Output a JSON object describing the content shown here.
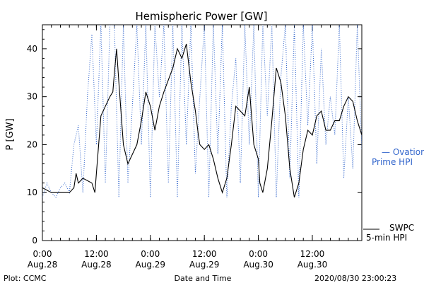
{
  "chart_data": {
    "type": "line",
    "title": "Hemispheric Power [GW]",
    "xlabel": "Date and Time",
    "ylabel": "P [GW]",
    "ylim": [
      0,
      45
    ],
    "yticks": [
      0,
      10,
      20,
      30,
      40
    ],
    "xlim": [
      "2020-08-28 00:00",
      "2020-08-30 23:00"
    ],
    "xticks": [
      {
        "t": "2020-08-28 00:00",
        "time": "0:00",
        "date": "Aug.28"
      },
      {
        "t": "2020-08-28 12:00",
        "time": "12:00",
        "date": "Aug.28"
      },
      {
        "t": "2020-08-29 00:00",
        "time": "0:00",
        "date": "Aug.29"
      },
      {
        "t": "2020-08-29 12:00",
        "time": "12:00",
        "date": "Aug.29"
      },
      {
        "t": "2020-08-30 00:00",
        "time": "0:00",
        "date": "Aug.30"
      },
      {
        "t": "2020-08-30 12:00",
        "time": "12:00",
        "date": "Aug.30"
      }
    ],
    "grid": false,
    "series": [
      {
        "name": "SWPC 5-min HPI",
        "label_lines": [
          "SWPC",
          "5-min HPI"
        ],
        "color": "#000000",
        "style": "solid",
        "x": [
          "2020-08-28 00:00",
          "2020-08-28 02:00",
          "2020-08-28 04:00",
          "2020-08-28 06:00",
          "2020-08-28 07:00",
          "2020-08-28 07:30",
          "2020-08-28 08:00",
          "2020-08-28 09:00",
          "2020-08-28 11:00",
          "2020-08-28 11:40",
          "2020-08-28 12:00",
          "2020-08-28 13:00",
          "2020-08-28 14:00",
          "2020-08-28 15:00",
          "2020-08-28 15:40",
          "2020-08-28 16:00",
          "2020-08-28 16:30",
          "2020-08-28 17:00",
          "2020-08-28 18:00",
          "2020-08-28 19:00",
          "2020-08-28 21:00",
          "2020-08-28 22:00",
          "2020-08-28 23:00",
          "2020-08-29 00:00",
          "2020-08-29 01:00",
          "2020-08-29 02:00",
          "2020-08-29 03:00",
          "2020-08-29 05:00",
          "2020-08-29 06:00",
          "2020-08-29 07:00",
          "2020-08-29 08:00",
          "2020-08-29 09:00",
          "2020-08-29 10:00",
          "2020-08-29 10:40",
          "2020-08-29 11:00",
          "2020-08-29 12:00",
          "2020-08-29 13:00",
          "2020-08-29 14:00",
          "2020-08-29 15:00",
          "2020-08-29 16:00",
          "2020-08-29 17:00",
          "2020-08-29 18:00",
          "2020-08-29 19:00",
          "2020-08-29 20:00",
          "2020-08-29 21:00",
          "2020-08-29 22:00",
          "2020-08-29 23:00",
          "2020-08-30 00:00",
          "2020-08-30 00:20",
          "2020-08-30 01:00",
          "2020-08-30 02:00",
          "2020-08-30 03:00",
          "2020-08-30 04:00",
          "2020-08-30 05:00",
          "2020-08-30 06:00",
          "2020-08-30 07:00",
          "2020-08-30 08:00",
          "2020-08-30 09:00",
          "2020-08-30 10:00",
          "2020-08-30 11:00",
          "2020-08-30 12:00",
          "2020-08-30 13:00",
          "2020-08-30 14:00",
          "2020-08-30 15:00",
          "2020-08-30 16:00",
          "2020-08-30 17:00",
          "2020-08-30 18:00",
          "2020-08-30 19:00",
          "2020-08-30 20:00",
          "2020-08-30 21:00",
          "2020-08-30 22:00",
          "2020-08-30 23:00"
        ],
        "y": [
          11,
          10,
          10,
          10,
          11,
          14,
          12,
          13,
          12,
          10,
          14,
          26,
          28,
          30,
          31,
          35,
          40,
          33,
          20,
          16,
          20,
          25,
          31,
          28,
          23,
          28,
          31,
          36,
          40,
          38,
          41,
          33,
          27,
          22,
          20,
          19,
          20,
          17,
          13,
          10,
          13,
          20,
          28,
          27,
          26,
          32,
          20,
          17,
          12,
          10,
          15,
          25,
          36,
          33,
          26,
          15,
          9,
          12,
          19,
          23,
          22,
          26,
          27,
          23,
          23,
          25,
          25,
          28,
          30,
          29,
          25,
          22
        ]
      },
      {
        "name": "Ovation Prime HPI",
        "label_lines": [
          "Ovation",
          "Prime HPI"
        ],
        "color": "#3366cc",
        "style": "dotted",
        "x": [
          "2020-08-28 00:00",
          "2020-08-28 01:00",
          "2020-08-28 02:00",
          "2020-08-28 03:00",
          "2020-08-28 04:00",
          "2020-08-28 05:00",
          "2020-08-28 06:00",
          "2020-08-28 07:00",
          "2020-08-28 08:00",
          "2020-08-28 09:00",
          "2020-08-28 10:00",
          "2020-08-28 11:00",
          "2020-08-28 12:00",
          "2020-08-28 13:00",
          "2020-08-28 14:00",
          "2020-08-28 15:00",
          "2020-08-28 16:00",
          "2020-08-28 17:00",
          "2020-08-28 18:00",
          "2020-08-28 19:00",
          "2020-08-28 20:00",
          "2020-08-28 21:00",
          "2020-08-28 22:00",
          "2020-08-28 23:00",
          "2020-08-29 00:00",
          "2020-08-29 01:00",
          "2020-08-29 02:00",
          "2020-08-29 03:00",
          "2020-08-29 04:00",
          "2020-08-29 05:00",
          "2020-08-29 06:00",
          "2020-08-29 07:00",
          "2020-08-29 08:00",
          "2020-08-29 09:00",
          "2020-08-29 10:00",
          "2020-08-29 11:00",
          "2020-08-29 12:00",
          "2020-08-29 13:00",
          "2020-08-29 14:00",
          "2020-08-29 15:00",
          "2020-08-29 16:00",
          "2020-08-29 17:00",
          "2020-08-29 18:00",
          "2020-08-29 19:00",
          "2020-08-29 20:00",
          "2020-08-29 21:00",
          "2020-08-29 22:00",
          "2020-08-29 23:00",
          "2020-08-30 00:00",
          "2020-08-30 01:00",
          "2020-08-30 02:00",
          "2020-08-30 03:00",
          "2020-08-30 04:00",
          "2020-08-30 05:00",
          "2020-08-30 06:00",
          "2020-08-30 07:00",
          "2020-08-30 08:00",
          "2020-08-30 09:00",
          "2020-08-30 10:00",
          "2020-08-30 11:00",
          "2020-08-30 12:00",
          "2020-08-30 13:00",
          "2020-08-30 14:00",
          "2020-08-30 15:00",
          "2020-08-30 16:00",
          "2020-08-30 17:00",
          "2020-08-30 18:00",
          "2020-08-30 19:00",
          "2020-08-30 20:00",
          "2020-08-30 21:00",
          "2020-08-30 22:00",
          "2020-08-30 23:00"
        ],
        "y": [
          9,
          12,
          10,
          9,
          11,
          12,
          10,
          20,
          24,
          10,
          30,
          43,
          20,
          45,
          12,
          45,
          45,
          9,
          45,
          12,
          28,
          45,
          20,
          45,
          9,
          45,
          30,
          45,
          12,
          45,
          9,
          45,
          20,
          45,
          14,
          30,
          45,
          9,
          45,
          18,
          45,
          9,
          28,
          38,
          12,
          45,
          20,
          45,
          9,
          45,
          26,
          45,
          9,
          34,
          45,
          13,
          45,
          9,
          45,
          24,
          45,
          16,
          40,
          20,
          30,
          22,
          45,
          13,
          30,
          15,
          45,
          19
        ]
      }
    ]
  },
  "footer": {
    "left": "Plot: CCMC",
    "center": "Date and Time",
    "right": "2020/08/30 23:00:23"
  },
  "legend_dash": "— "
}
